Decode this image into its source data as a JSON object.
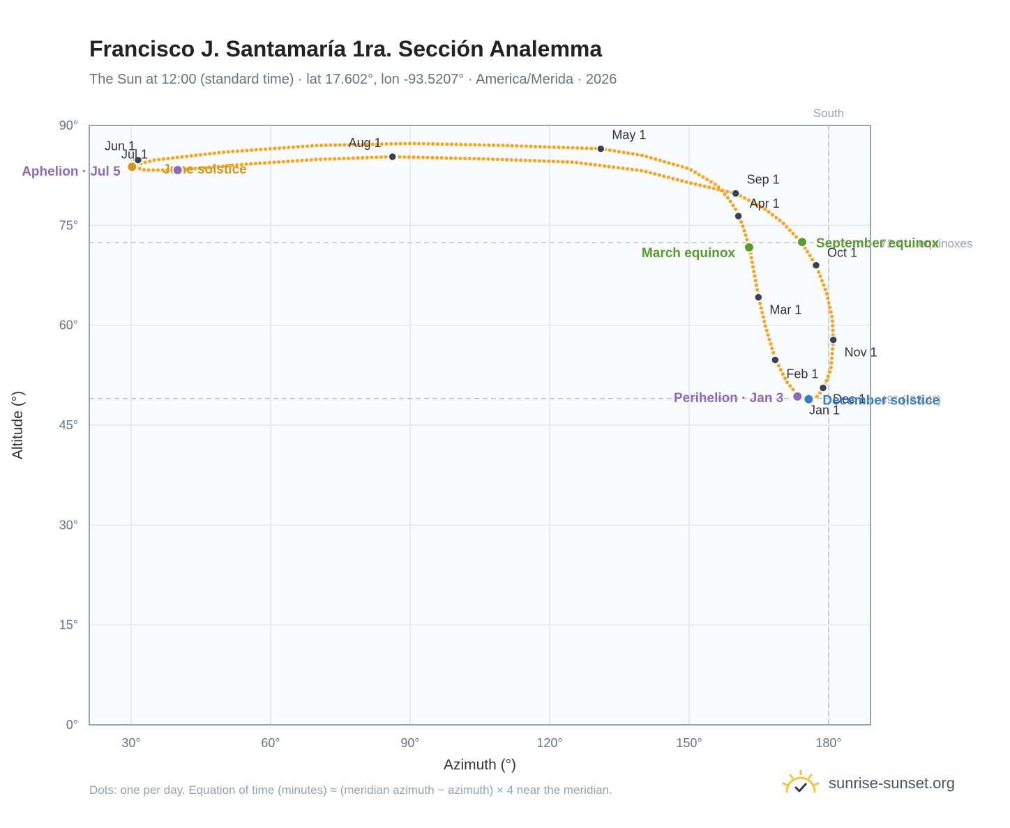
{
  "title": "Francisco J. Santamaría 1ra. Sección Analemma",
  "subtitle": "The Sun at 12:00 (standard time) · lat 17.602°, lon -93.5207° · America/Merida · 2026",
  "footnote": "Dots: one per day. Equation of time (minutes) ≈ (meridian azimuth − azimuth) × 4 near the meridian.",
  "brand": {
    "name": "sunrise-sunset.org",
    "icon": "sun-logo-icon"
  },
  "colors": {
    "analemma": "#f5a623",
    "month_marker": "#374151",
    "equinox": "#5a9a2e",
    "december_solstice": "#3b7dc4",
    "june_solstice": "#d4961e",
    "apsis": "#8e6bb8",
    "reference_line": "#b8c2cc",
    "plot_background": "#f9fbfd",
    "grid": "#e3e8ee",
    "frame": "#9aa3ae"
  },
  "chart_data": {
    "type": "scatter",
    "xlabel": "Azimuth (°)",
    "ylabel": "Altitude (°)",
    "xlim": [
      21,
      189
    ],
    "ylim": [
      0,
      90
    ],
    "x_ticks": [
      30,
      60,
      90,
      120,
      150,
      180
    ],
    "x_tick_labels": [
      "30°",
      "60°",
      "90°",
      "120°",
      "150°",
      "180°"
    ],
    "y_ticks": [
      0,
      15,
      30,
      45,
      60,
      75,
      90
    ],
    "y_tick_labels": [
      "0°",
      "15°",
      "30°",
      "45°",
      "60°",
      "75°",
      "90°"
    ],
    "grid": true,
    "meridian": {
      "azimuth": 180,
      "label": "South"
    },
    "reference_lines": [
      {
        "altitude": 72.4,
        "label": "72.4° · equinoxes"
      },
      {
        "altitude": 49.0,
        "label": "49° (-23.4°)"
      }
    ],
    "analemma_path": [
      [
        175.6,
        48.9
      ],
      [
        174.0,
        49.2
      ],
      [
        173.0,
        49.8
      ],
      [
        171.0,
        51.5
      ],
      [
        168.5,
        55.0
      ],
      [
        166.5,
        59.6
      ],
      [
        165.0,
        64.0
      ],
      [
        163.0,
        71.6
      ],
      [
        161.5,
        75.0
      ],
      [
        160.4,
        77.0
      ],
      [
        158.5,
        79.0
      ],
      [
        156.0,
        81.0
      ],
      [
        150.0,
        83.5
      ],
      [
        140.0,
        85.5
      ],
      [
        131.0,
        86.5
      ],
      [
        110.0,
        87.0
      ],
      [
        90.0,
        87.3
      ],
      [
        70.0,
        87.0
      ],
      [
        50.0,
        86.0
      ],
      [
        35.0,
        84.8
      ],
      [
        30.0,
        83.9
      ],
      [
        33.0,
        83.3
      ],
      [
        40.0,
        83.3
      ],
      [
        55.0,
        84.2
      ],
      [
        70.0,
        84.9
      ],
      [
        86.0,
        85.3
      ],
      [
        105.0,
        85.0
      ],
      [
        125.0,
        84.5
      ],
      [
        140.0,
        83.2
      ],
      [
        150.0,
        81.4
      ],
      [
        160.0,
        79.8
      ],
      [
        166.0,
        77.6
      ],
      [
        170.0,
        75.5
      ],
      [
        174.2,
        72.4
      ],
      [
        177.3,
        69.0
      ],
      [
        179.5,
        65.0
      ],
      [
        180.8,
        61.0
      ],
      [
        181.0,
        57.8
      ],
      [
        180.5,
        53.5
      ],
      [
        179.0,
        50.6
      ],
      [
        177.5,
        49.3
      ],
      [
        175.6,
        48.9
      ]
    ],
    "month_markers": [
      {
        "label": "Jan 1",
        "azimuth": 175.5,
        "altitude": 48.9
      },
      {
        "label": "Feb 1",
        "azimuth": 168.5,
        "altitude": 54.8
      },
      {
        "label": "Mar 1",
        "azimuth": 164.9,
        "altitude": 64.2
      },
      {
        "label": "Apr 1",
        "azimuth": 160.6,
        "altitude": 76.4
      },
      {
        "label": "May 1",
        "azimuth": 131.0,
        "altitude": 86.5
      },
      {
        "label": "Jun 1",
        "azimuth": 31.2,
        "altitude": 84.8
      },
      {
        "label": "Jul 1",
        "azimuth": 31.5,
        "altitude": 84.8
      },
      {
        "label": "Aug 1",
        "azimuth": 86.2,
        "altitude": 85.3
      },
      {
        "label": "Sep 1",
        "azimuth": 160.0,
        "altitude": 79.8
      },
      {
        "label": "Oct 1",
        "azimuth": 177.3,
        "altitude": 69.0
      },
      {
        "label": "Nov 1",
        "azimuth": 181.0,
        "altitude": 57.8
      },
      {
        "label": "Dec 1",
        "azimuth": 178.8,
        "altitude": 50.6
      }
    ],
    "events": [
      {
        "label": "March equinox",
        "azimuth": 162.9,
        "altitude": 71.7,
        "kind": "equinox"
      },
      {
        "label": "September equinox",
        "azimuth": 174.3,
        "altitude": 72.5,
        "kind": "equinox"
      },
      {
        "label": "June solstice",
        "azimuth": 30.2,
        "altitude": 83.8,
        "kind": "june_solstice"
      },
      {
        "label": "December solstice",
        "azimuth": 175.7,
        "altitude": 48.9,
        "kind": "december_solstice"
      },
      {
        "label": "Perihelion · Jan 3",
        "azimuth": 173.3,
        "altitude": 49.3,
        "kind": "apsis"
      },
      {
        "label": "Aphelion · Jul 5",
        "azimuth": 40.0,
        "altitude": 83.3,
        "kind": "apsis"
      }
    ]
  }
}
